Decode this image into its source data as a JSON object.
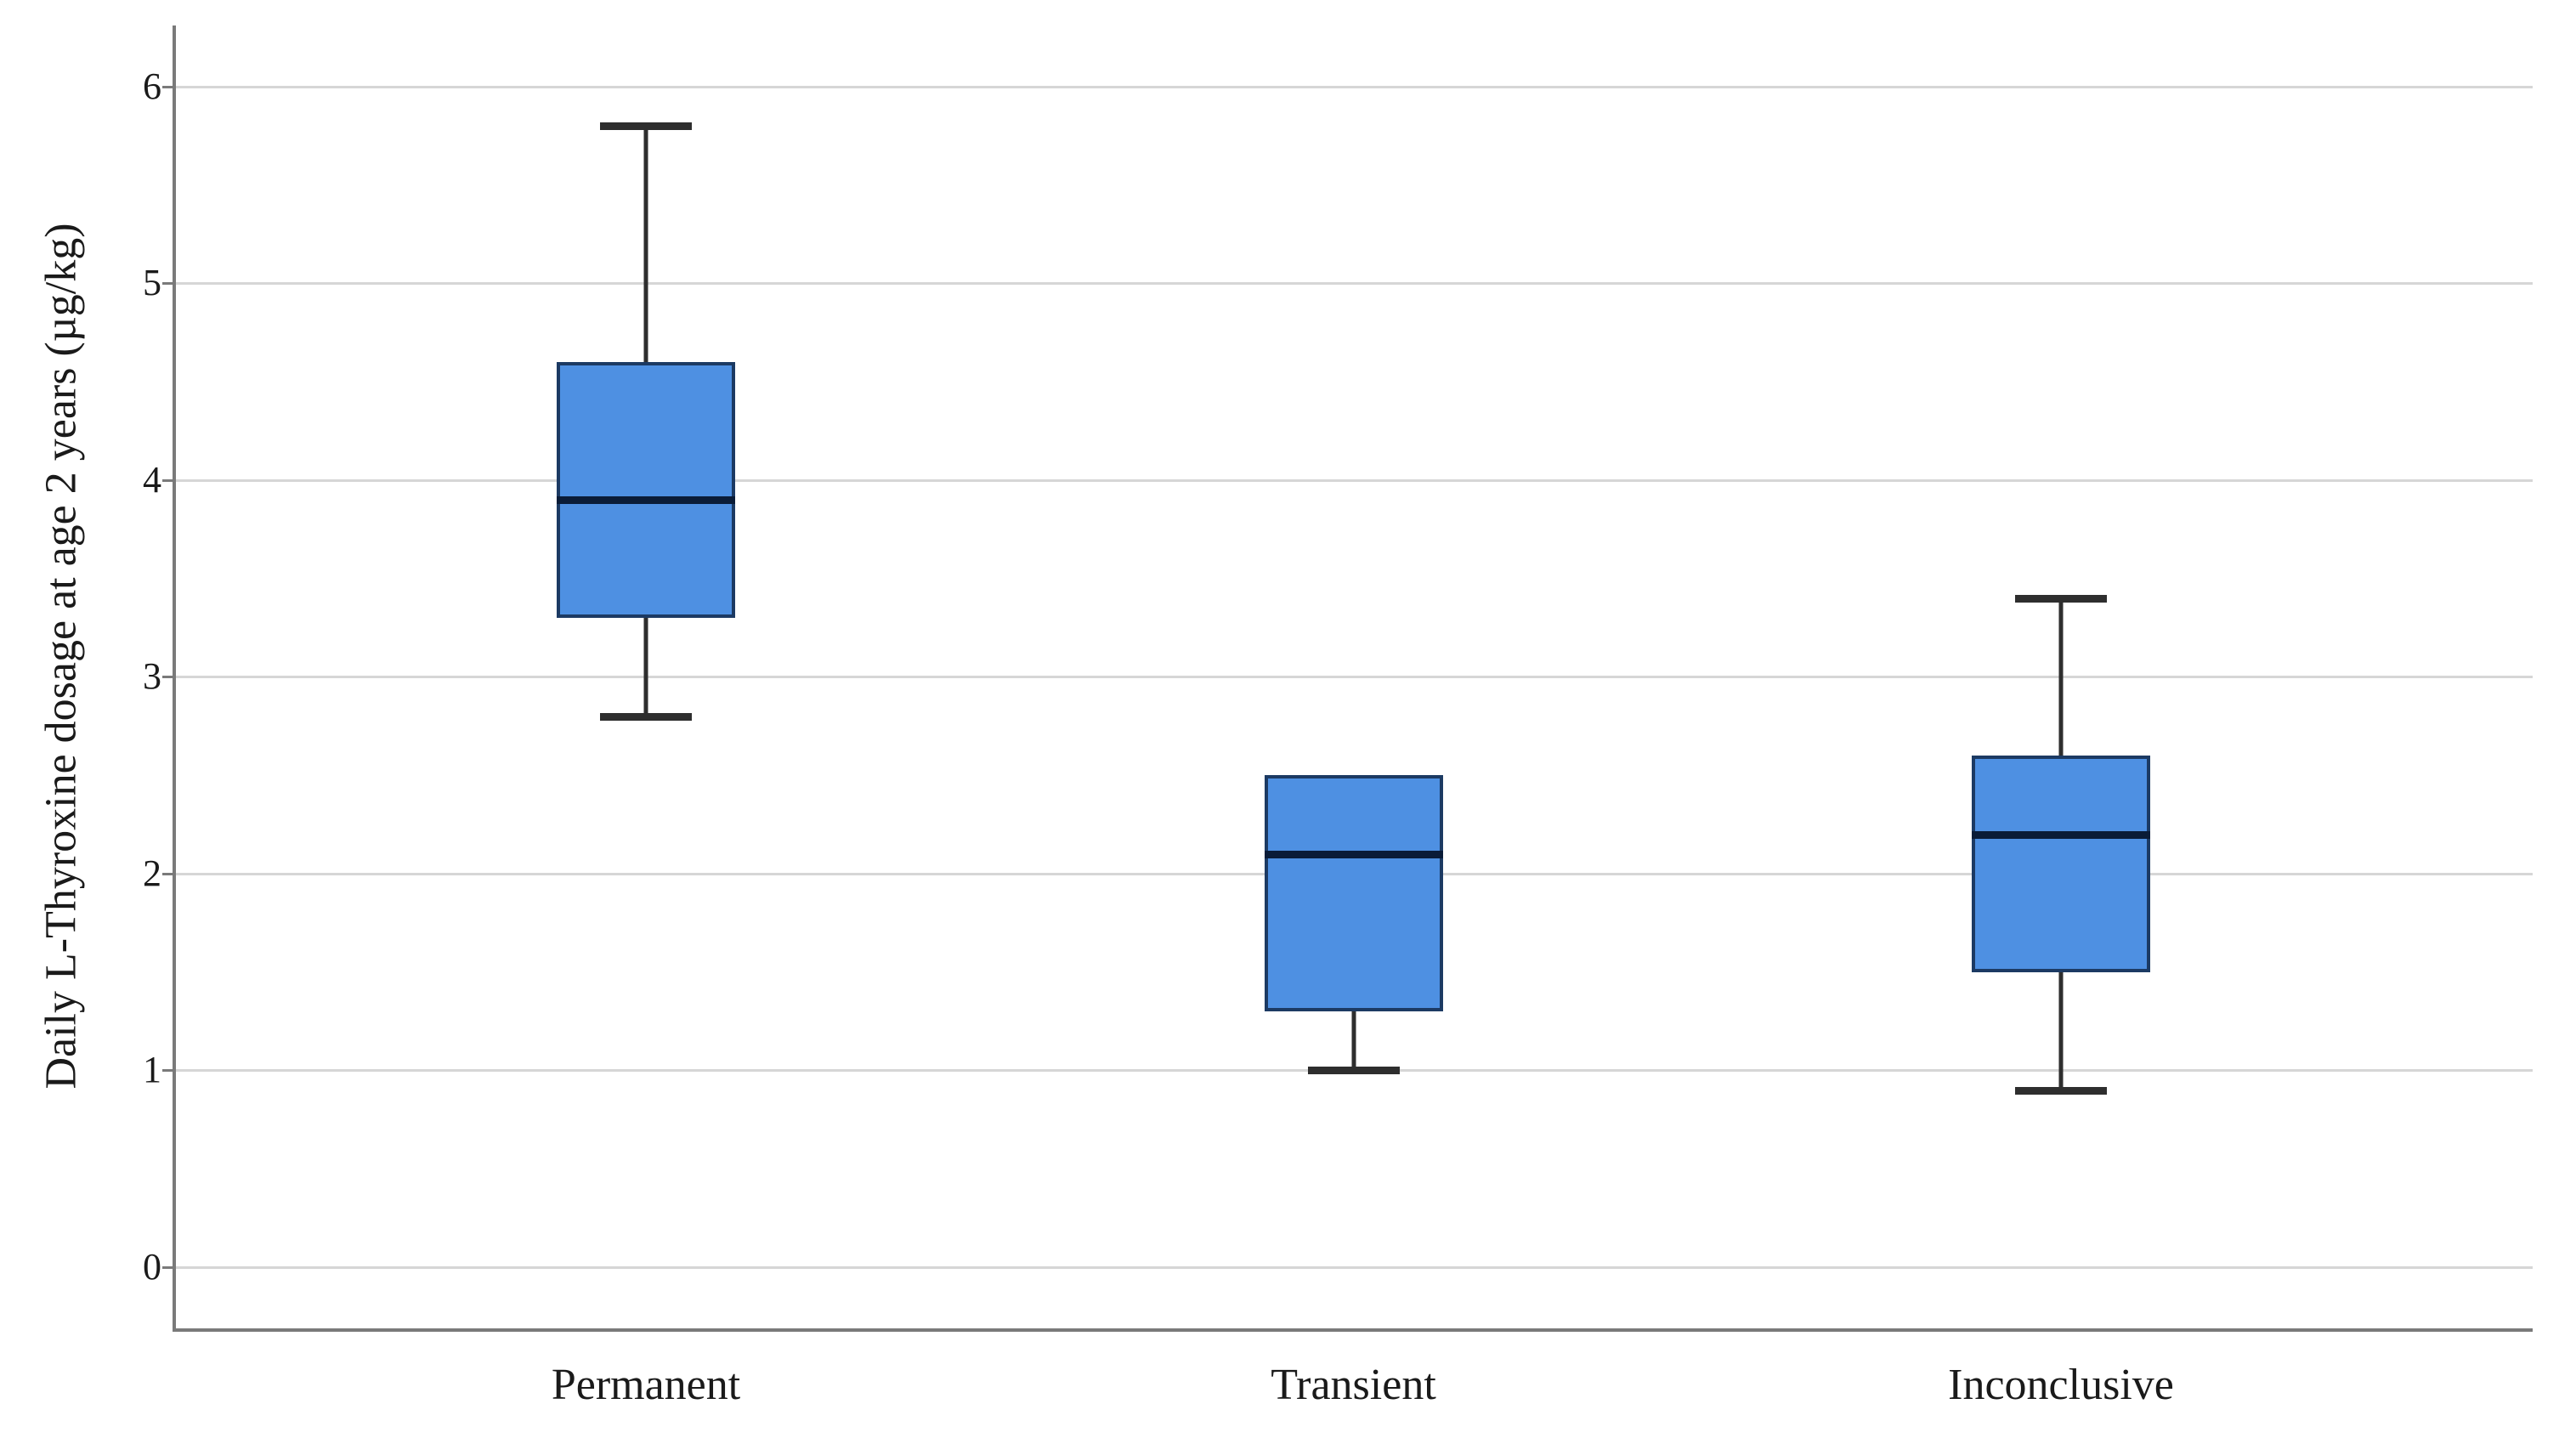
{
  "figure": {
    "background": "#ffffff"
  },
  "colors": {
    "box_fill": "#4e90e2",
    "box_border": "#1c3a63",
    "median": "#0a1c38",
    "whisker": "#2e2e2e",
    "gridline": "#d6d6d6",
    "axis": "#7a7a7a",
    "text": "#1a1a1a"
  },
  "chart_data": {
    "type": "boxplot",
    "title": "",
    "xlabel": "",
    "ylabel": "Daily L-Thyroxine dosage at age 2 years (µg/kg)",
    "categories": [
      "Permanent",
      "Transient",
      "Inconclusive"
    ],
    "y_ticks": [
      0,
      1,
      2,
      3,
      4,
      5,
      6
    ],
    "ylim": [
      -0.32,
      6.31
    ],
    "grid": "horizontal",
    "legend": "none",
    "series": [
      {
        "category": "Permanent",
        "whisker_low": 2.8,
        "q1": 3.3,
        "median": 3.9,
        "q3": 4.6,
        "whisker_high": 5.8,
        "has_upper_whisker": true,
        "has_lower_whisker": true
      },
      {
        "category": "Transient",
        "whisker_low": 1.0,
        "q1": 1.3,
        "median": 2.1,
        "q3": 2.5,
        "whisker_high": 2.5,
        "has_upper_whisker": false,
        "has_lower_whisker": true
      },
      {
        "category": "Inconclusive",
        "whisker_low": 0.9,
        "q1": 1.5,
        "median": 2.2,
        "q3": 2.6,
        "whisker_high": 3.4,
        "has_upper_whisker": true,
        "has_lower_whisker": true
      }
    ]
  }
}
